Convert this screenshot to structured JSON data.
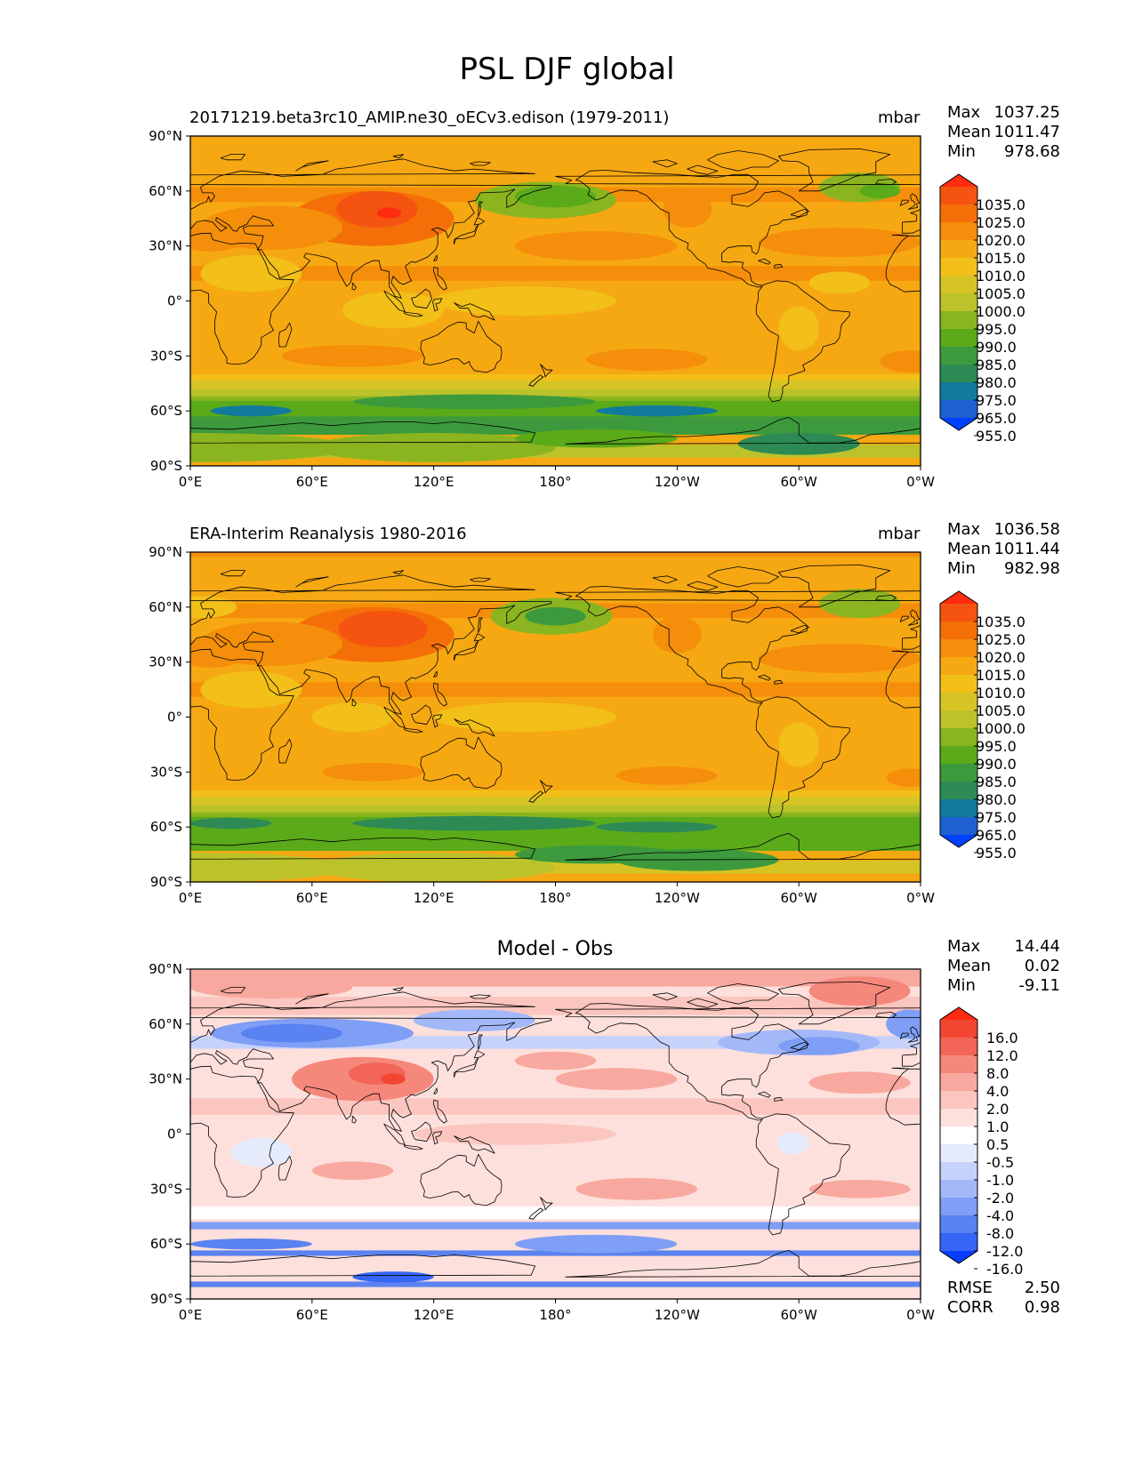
{
  "title": "PSL DJF global",
  "colors": {
    "abs_levels": [
      "#0040ff",
      "#1e60d0",
      "#127a9a",
      "#2d8a55",
      "#3c9a3c",
      "#5aaa1a",
      "#8ab520",
      "#bcc22a",
      "#d6c425",
      "#f2c019",
      "#f6a812",
      "#f58e0a",
      "#f56f08",
      "#f55410",
      "#ff2c10"
    ],
    "diff_levels": [
      "#0a3cff",
      "#3566f5",
      "#5a82f0",
      "#7f9ef5",
      "#a3b8f8",
      "#c6d2fa",
      "#e6ebfc",
      "#ffffff",
      "#fde0dc",
      "#fbc6bf",
      "#f8a89e",
      "#f5887b",
      "#f26558",
      "#f24633",
      "#ff2a10"
    ]
  },
  "panels": [
    {
      "id": "model",
      "title": "20171219.beta3rc10_AMIP.ne30_oECv3.edison (1979-2011)",
      "units": "mbar",
      "stats": {
        "max_label": "Max",
        "max": "1037.25",
        "mean_label": "Mean",
        "mean": "1011.47",
        "min_label": "Min",
        "min": "978.68"
      },
      "colorbar": [
        "1035.0",
        "1025.0",
        "1020.0",
        "1015.0",
        "1010.0",
        "1005.0",
        "1000.0",
        "995.0",
        "990.0",
        "985.0",
        "980.0",
        "975.0",
        "965.0",
        "955.0"
      ]
    },
    {
      "id": "obs",
      "title": "ERA-Interim Reanalysis 1980-2016",
      "units": "mbar",
      "stats": {
        "max_label": "Max",
        "max": "1036.58",
        "mean_label": "Mean",
        "mean": "1011.44",
        "min_label": "Min",
        "min": "982.98"
      },
      "colorbar": [
        "1035.0",
        "1025.0",
        "1020.0",
        "1015.0",
        "1010.0",
        "1005.0",
        "1000.0",
        "995.0",
        "990.0",
        "985.0",
        "980.0",
        "975.0",
        "965.0",
        "955.0"
      ]
    },
    {
      "id": "diff",
      "title": "Model - Obs",
      "stats": {
        "max_label": "Max",
        "max": "14.44",
        "mean_label": "Mean",
        "mean": "0.02",
        "min_label": "Min",
        "min": "-9.11"
      },
      "colorbar": [
        "16.0",
        "12.0",
        "8.0",
        "4.0",
        "2.0",
        "1.0",
        "0.5",
        "-0.5",
        "-1.0",
        "-2.0",
        "-4.0",
        "-8.0",
        "-12.0",
        "-16.0"
      ],
      "rmse_label": "RMSE",
      "rmse": "2.50",
      "corr_label": "CORR",
      "corr": "0.98"
    }
  ],
  "axes": {
    "x_ticks": [
      "0°E",
      "60°E",
      "120°E",
      "180°",
      "120°W",
      "60°W",
      "0°W"
    ],
    "y_ticks": [
      "90°N",
      "60°N",
      "30°N",
      "0°",
      "30°S",
      "60°S",
      "90°S"
    ]
  },
  "chart_data": [
    {
      "type": "heatmap",
      "title": "20171219.beta3rc10_AMIP.ne30_oECv3.edison (1979-2011)",
      "units": "mbar",
      "xlim": [
        0,
        360
      ],
      "ylim": [
        -90,
        90
      ],
      "x_tick_labels": [
        "0°E",
        "60°E",
        "120°E",
        "180°",
        "120°W",
        "60°W",
        "0°W"
      ],
      "y_tick_labels": [
        "90°N",
        "60°N",
        "30°N",
        "0°",
        "30°S",
        "60°S",
        "90°S"
      ],
      "levels": [
        955,
        965,
        975,
        980,
        985,
        990,
        995,
        1000,
        1005,
        1010,
        1015,
        1020,
        1025,
        1035
      ],
      "stats": {
        "max": 1037.25,
        "mean": 1011.47,
        "min": 978.68
      }
    },
    {
      "type": "heatmap",
      "title": "ERA-Interim Reanalysis 1980-2016",
      "units": "mbar",
      "xlim": [
        0,
        360
      ],
      "ylim": [
        -90,
        90
      ],
      "x_tick_labels": [
        "0°E",
        "60°E",
        "120°E",
        "180°",
        "120°W",
        "60°W",
        "0°W"
      ],
      "y_tick_labels": [
        "90°N",
        "60°N",
        "30°N",
        "0°",
        "30°S",
        "60°S",
        "90°S"
      ],
      "levels": [
        955,
        965,
        975,
        980,
        985,
        990,
        995,
        1000,
        1005,
        1010,
        1015,
        1020,
        1025,
        1035
      ],
      "stats": {
        "max": 1036.58,
        "mean": 1011.44,
        "min": 982.98
      }
    },
    {
      "type": "heatmap",
      "title": "Model - Obs",
      "xlim": [
        0,
        360
      ],
      "ylim": [
        -90,
        90
      ],
      "x_tick_labels": [
        "0°E",
        "60°E",
        "120°E",
        "180°",
        "120°W",
        "60°W",
        "0°W"
      ],
      "y_tick_labels": [
        "90°N",
        "60°N",
        "30°N",
        "0°",
        "30°S",
        "60°S",
        "90°S"
      ],
      "levels": [
        -16,
        -12,
        -8,
        -4,
        -2,
        -1,
        -0.5,
        0.5,
        1,
        2,
        4,
        8,
        12,
        16
      ],
      "stats": {
        "max": 14.44,
        "mean": 0.02,
        "min": -9.11,
        "rmse": 2.5,
        "corr": 0.98
      }
    }
  ]
}
